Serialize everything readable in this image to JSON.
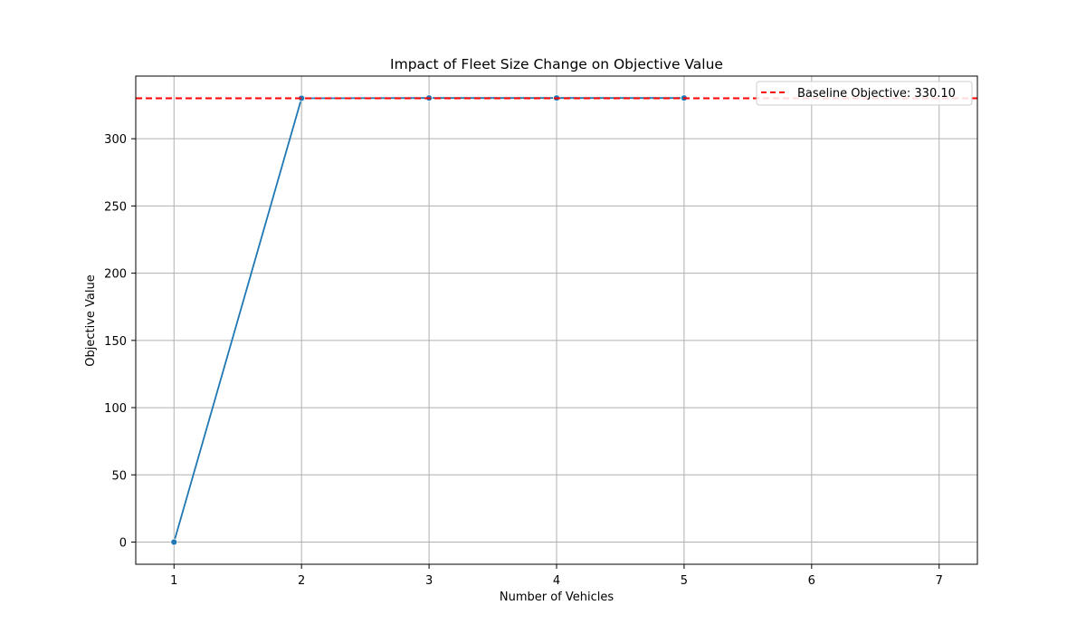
{
  "chart_data": {
    "type": "line",
    "title": "Impact of Fleet Size Change on Objective Value",
    "xlabel": "Number of Vehicles",
    "ylabel": "Objective Value",
    "x_ticks": [
      "1",
      "2",
      "3",
      "4",
      "5",
      "6",
      "7"
    ],
    "y_ticks": [
      "0",
      "50",
      "100",
      "150",
      "200",
      "250",
      "300"
    ],
    "xlim": [
      0.7,
      7.3
    ],
    "ylim": [
      -16.5,
      346.6
    ],
    "grid": true,
    "series": [
      {
        "x": [
          1,
          2,
          3,
          4,
          5
        ],
        "y": [
          0,
          330.1,
          330.3,
          330.3,
          330.3
        ],
        "color": "#1f77b4",
        "marker": "circle"
      }
    ],
    "baseline": {
      "value": 330.1,
      "label": "Baseline Objective: 330.10",
      "color": "#ff0000",
      "style": "dashed"
    },
    "legend_position": "top-right"
  }
}
